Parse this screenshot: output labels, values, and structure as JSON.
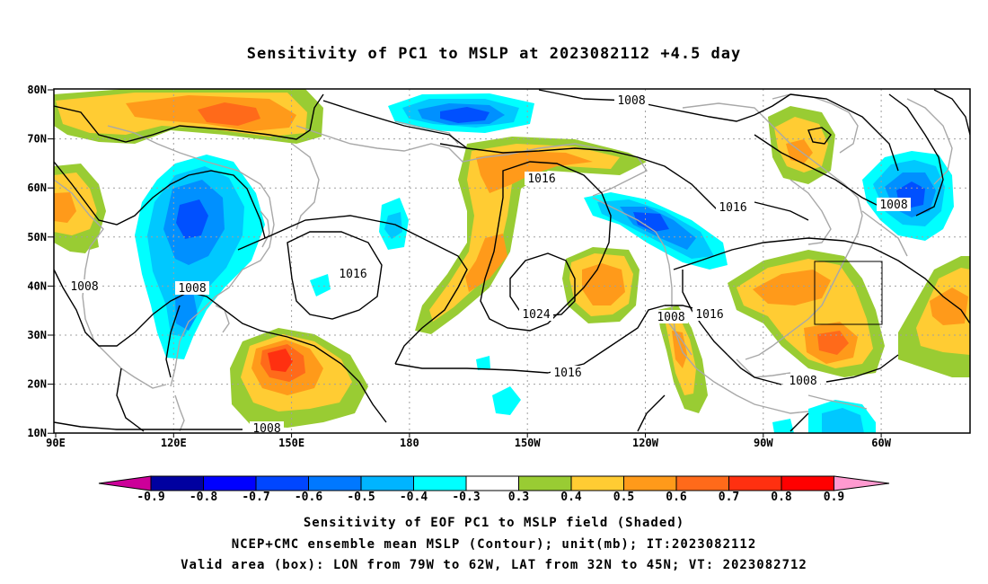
{
  "title": "Sensitivity of PC1 to MSLP at 2023082112 +4.5 day",
  "map": {
    "lon_ticks": [
      "90E",
      "120E",
      "150E",
      "180",
      "150W",
      "120W",
      "90W",
      "60W"
    ],
    "lat_ticks": [
      "80N",
      "70N",
      "60N",
      "50N",
      "40N",
      "30N",
      "20N",
      "10N"
    ],
    "contour_labels": [
      "1008",
      "1016",
      "1016",
      "1016",
      "1008",
      "1008",
      "1024",
      "1008",
      "1016",
      "1016",
      "1008",
      "1008",
      "1008"
    ],
    "valid_box": {
      "lon_range": [
        "79W",
        "62W"
      ],
      "lat_range": [
        "32N",
        "45N"
      ]
    },
    "colors": {
      "contour": "#000000",
      "coastline": "#a8a8a8",
      "grid": "#a0a0a0",
      "pos_03": "#99cc33",
      "pos_04": "#ffcc33",
      "pos_05": "#ff9a1a",
      "pos_06": "#ff6a1a",
      "neg_03": "#00ffff",
      "neg_04": "#00c8ff",
      "neg_05": "#0090ff",
      "neg_06": "#0050ff"
    }
  },
  "colorbar": {
    "labels": [
      "-0.9",
      "-0.8",
      "-0.7",
      "-0.6",
      "-0.5",
      "-0.4",
      "-0.3",
      "0.3",
      "0.4",
      "0.5",
      "0.6",
      "0.7",
      "0.8",
      "0.9"
    ],
    "colors": [
      "#cc0099",
      "#0000a0",
      "#0000ff",
      "#0046ff",
      "#0078ff",
      "#00b4ff",
      "#00ffff",
      "#ffffff",
      "#99cc33",
      "#ffcc33",
      "#ff9a1a",
      "#ff6a1a",
      "#ff3010",
      "#ff0000",
      "#ff9ad0"
    ]
  },
  "captions": {
    "line1": "Sensitivity of EOF PC1 to MSLP field (Shaded)",
    "line2": "NCEP+CMC ensemble mean MSLP (Contour); unit(mb); IT:2023082112",
    "line3": "Valid area (box): LON from 79W to 62W, LAT from 32N to 45N; VT: 2023082712"
  }
}
